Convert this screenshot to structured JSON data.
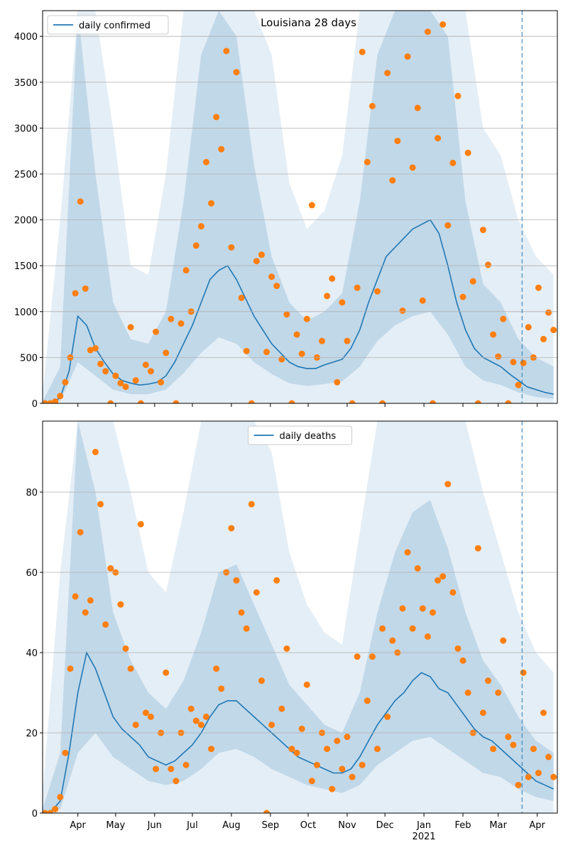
{
  "chart_data": [
    {
      "type": "line",
      "title": "Louisiana 28 days",
      "legend": "upper left",
      "xlim": [
        0,
        409
      ],
      "ylim": [
        0,
        4280
      ],
      "grid": true,
      "xticks": [
        28,
        58,
        89,
        119,
        150,
        181,
        211,
        242,
        272,
        303,
        334,
        362,
        393
      ],
      "yticks": [
        0,
        500,
        1000,
        1500,
        2000,
        2500,
        3000,
        3500,
        4000
      ],
      "vline": {
        "value": 381,
        "color": "#1f77b4"
      },
      "bands": {
        "color": "#1f77b4",
        "x": [
          0,
          14,
          28,
          42,
          56,
          70,
          84,
          98,
          112,
          126,
          140,
          154,
          168,
          182,
          196,
          210,
          224,
          238,
          252,
          266,
          280,
          294,
          308,
          322,
          336,
          350,
          364,
          378,
          392,
          406
        ],
        "inner_low": [
          0,
          20,
          450,
          300,
          150,
          100,
          100,
          150,
          330,
          550,
          720,
          650,
          450,
          320,
          220,
          190,
          210,
          240,
          400,
          680,
          850,
          950,
          1000,
          750,
          400,
          250,
          200,
          120,
          70,
          50
        ],
        "inner_high": [
          20,
          400,
          4280,
          2500,
          1100,
          700,
          650,
          1000,
          2200,
          3800,
          4280,
          4000,
          2600,
          1600,
          1100,
          900,
          1000,
          1200,
          2200,
          3800,
          4280,
          4280,
          4280,
          4000,
          2200,
          1300,
          1100,
          700,
          500,
          400
        ],
        "outer_high": [
          100,
          2000,
          4280,
          4280,
          3000,
          1500,
          1400,
          2500,
          4280,
          4280,
          4280,
          4280,
          4280,
          3800,
          2400,
          1900,
          2100,
          2700,
          4280,
          4280,
          4280,
          4280,
          4280,
          4280,
          4280,
          3000,
          2700,
          2000,
          1600,
          1400
        ]
      },
      "series": [
        {
          "name": "daily confirmed",
          "color": "#1f77b4",
          "x": [
            0,
            7,
            14,
            21,
            28,
            35,
            42,
            49,
            56,
            63,
            70,
            77,
            84,
            91,
            98,
            105,
            112,
            119,
            126,
            133,
            140,
            147,
            154,
            161,
            168,
            175,
            182,
            189,
            196,
            203,
            210,
            217,
            224,
            231,
            238,
            245,
            252,
            259,
            266,
            273,
            280,
            287,
            294,
            301,
            308,
            315,
            322,
            329,
            336,
            343,
            350,
            357,
            364,
            371,
            378,
            385,
            392,
            399,
            406
          ],
          "values": [
            0,
            5,
            60,
            350,
            950,
            850,
            600,
            450,
            320,
            250,
            220,
            200,
            210,
            230,
            300,
            450,
            650,
            850,
            1100,
            1350,
            1450,
            1500,
            1350,
            1150,
            950,
            800,
            650,
            550,
            450,
            400,
            380,
            380,
            420,
            450,
            480,
            600,
            800,
            1100,
            1350,
            1600,
            1700,
            1800,
            1900,
            1950,
            2000,
            1850,
            1500,
            1100,
            800,
            600,
            500,
            450,
            400,
            320,
            250,
            180,
            150,
            120,
            100
          ]
        }
      ],
      "points": {
        "color": "#ff7f0e",
        "x": [
          2,
          6,
          10,
          14,
          18,
          22,
          26,
          30,
          34,
          38,
          42,
          46,
          50,
          54,
          58,
          62,
          66,
          70,
          74,
          78,
          82,
          86,
          90,
          94,
          98,
          102,
          106,
          110,
          114,
          118,
          122,
          126,
          130,
          134,
          138,
          142,
          146,
          150,
          154,
          158,
          162,
          166,
          170,
          174,
          178,
          182,
          186,
          190,
          194,
          198,
          202,
          206,
          210,
          214,
          218,
          222,
          226,
          230,
          234,
          238,
          242,
          246,
          250,
          254,
          258,
          262,
          266,
          270,
          274,
          278,
          282,
          286,
          290,
          294,
          298,
          302,
          306,
          310,
          314,
          318,
          322,
          326,
          330,
          334,
          338,
          342,
          346,
          350,
          354,
          358,
          362,
          366,
          370,
          374,
          378,
          382,
          386,
          390,
          394,
          398,
          402,
          406
        ],
        "values": [
          0,
          0,
          20,
          80,
          230,
          500,
          1200,
          2200,
          1250,
          580,
          600,
          430,
          350,
          0,
          300,
          220,
          180,
          830,
          250,
          0,
          420,
          350,
          780,
          230,
          550,
          920,
          0,
          870,
          1450,
          1000,
          1720,
          1930,
          2630,
          2180,
          3120,
          2770,
          3840,
          1700,
          3610,
          1150,
          570,
          0,
          1550,
          1620,
          560,
          1380,
          1280,
          480,
          970,
          0,
          750,
          540,
          920,
          2160,
          500,
          680,
          1170,
          1360,
          230,
          1100,
          680,
          0,
          1260,
          3830,
          2630,
          3240,
          1220,
          0,
          3600,
          2430,
          2860,
          1010,
          3780,
          2570,
          3220,
          1120,
          4050,
          0,
          2890,
          4130,
          1940,
          2620,
          3350,
          1160,
          2730,
          1330,
          0,
          1890,
          1510,
          750,
          510,
          920,
          0,
          450,
          200,
          440,
          830,
          500,
          1260,
          700,
          990,
          800
        ]
      }
    },
    {
      "type": "line",
      "legend": "upper center",
      "xlim": [
        0,
        409
      ],
      "ylim": [
        0,
        97.7
      ],
      "grid": true,
      "xticks": [
        {
          "value": 28,
          "label": "Apr"
        },
        {
          "value": 58,
          "label": "May"
        },
        {
          "value": 89,
          "label": "Jun"
        },
        {
          "value": 119,
          "label": "Jul"
        },
        {
          "value": 150,
          "label": "Aug"
        },
        {
          "value": 181,
          "label": "Sep"
        },
        {
          "value": 211,
          "label": "Oct"
        },
        {
          "value": 242,
          "label": "Nov"
        },
        {
          "value": 272,
          "label": "Dec"
        },
        {
          "value": 303,
          "label": "Jan"
        },
        {
          "value": 334,
          "label": "Feb"
        },
        {
          "value": 362,
          "label": "Mar"
        },
        {
          "value": 393,
          "label": "Apr"
        }
      ],
      "year_label": {
        "value": 303,
        "label": "2021"
      },
      "yticks": [
        0,
        20,
        40,
        60,
        80
      ],
      "vline": {
        "value": 381,
        "color": "#1f77b4"
      },
      "bands": {
        "color": "#1f77b4",
        "x": [
          0,
          14,
          28,
          42,
          56,
          70,
          84,
          98,
          112,
          126,
          140,
          154,
          168,
          182,
          196,
          210,
          224,
          238,
          252,
          266,
          280,
          294,
          308,
          322,
          336,
          350,
          364,
          378,
          392,
          406
        ],
        "inner_low": [
          0,
          1,
          15,
          20,
          14,
          11,
          8,
          7,
          8,
          11,
          15,
          16,
          14,
          11,
          9,
          7,
          6,
          5,
          7,
          12,
          15,
          18,
          19,
          16,
          13,
          10,
          9,
          6,
          4,
          3
        ],
        "inner_high": [
          1,
          15,
          97.7,
          80,
          50,
          38,
          30,
          26,
          33,
          45,
          60,
          62,
          52,
          42,
          32,
          27,
          22,
          20,
          30,
          50,
          65,
          75,
          78,
          66,
          50,
          38,
          32,
          24,
          18,
          15
        ],
        "outer_high": [
          5,
          60,
          97.7,
          97.7,
          97.7,
          80,
          60,
          55,
          75,
          97.7,
          97.7,
          97.7,
          97.7,
          90,
          65,
          52,
          45,
          42,
          70,
          97.7,
          97.7,
          97.7,
          97.7,
          97.7,
          97.7,
          80,
          65,
          50,
          40,
          35
        ]
      },
      "series": [
        {
          "name": "daily deaths",
          "color": "#1f77b4",
          "x": [
            0,
            7,
            14,
            21,
            28,
            35,
            42,
            49,
            56,
            63,
            70,
            77,
            84,
            91,
            98,
            105,
            112,
            119,
            126,
            133,
            140,
            147,
            154,
            161,
            168,
            175,
            182,
            189,
            196,
            203,
            210,
            217,
            224,
            231,
            238,
            245,
            252,
            259,
            266,
            273,
            280,
            287,
            294,
            301,
            308,
            315,
            322,
            329,
            336,
            343,
            350,
            357,
            364,
            371,
            378,
            385,
            392,
            399,
            406
          ],
          "values": [
            0,
            0.5,
            3,
            15,
            30,
            40,
            36,
            30,
            24,
            21,
            19,
            17,
            14,
            13,
            12,
            13,
            15,
            17,
            20,
            24,
            27,
            28,
            28,
            26,
            24,
            22,
            20,
            18,
            16,
            14,
            13,
            12,
            11,
            10,
            10,
            11,
            14,
            18,
            22,
            25,
            28,
            30,
            33,
            35,
            34,
            31,
            30,
            27,
            24,
            21,
            19,
            18,
            16,
            14,
            12,
            10,
            8,
            7,
            6
          ]
        }
      ],
      "points": {
        "color": "#ff7f0e",
        "x": [
          2,
          6,
          10,
          14,
          18,
          22,
          26,
          30,
          34,
          38,
          42,
          46,
          50,
          54,
          58,
          62,
          66,
          70,
          74,
          78,
          82,
          86,
          90,
          94,
          98,
          102,
          106,
          110,
          114,
          118,
          122,
          126,
          130,
          134,
          138,
          142,
          146,
          150,
          154,
          158,
          162,
          166,
          170,
          174,
          178,
          182,
          186,
          190,
          194,
          198,
          202,
          206,
          210,
          214,
          218,
          222,
          226,
          230,
          234,
          238,
          242,
          246,
          250,
          254,
          258,
          262,
          266,
          270,
          274,
          278,
          282,
          286,
          290,
          294,
          298,
          302,
          306,
          310,
          314,
          318,
          322,
          326,
          330,
          334,
          338,
          342,
          346,
          350,
          354,
          358,
          362,
          366,
          370,
          374,
          378,
          382,
          386,
          390,
          394,
          398,
          402,
          406
        ],
        "values": [
          0,
          0,
          1,
          4,
          15,
          36,
          54,
          70,
          50,
          53,
          90,
          77,
          47,
          61,
          60,
          52,
          41,
          36,
          22,
          72,
          25,
          24,
          11,
          20,
          35,
          11,
          8,
          20,
          12,
          26,
          23,
          22,
          24,
          16,
          36,
          31,
          60,
          71,
          58,
          50,
          46,
          77,
          55,
          33,
          0,
          22,
          58,
          26,
          41,
          16,
          15,
          21,
          32,
          8,
          12,
          20,
          16,
          6,
          18,
          11,
          19,
          9,
          39,
          12,
          28,
          39,
          16,
          46,
          24,
          43,
          40,
          51,
          65,
          46,
          61,
          51,
          44,
          50,
          58,
          59,
          82,
          55,
          41,
          38,
          30,
          20,
          66,
          25,
          33,
          16,
          30,
          43,
          19,
          17,
          7,
          35,
          9,
          16,
          10,
          25,
          14,
          9
        ]
      }
    }
  ]
}
